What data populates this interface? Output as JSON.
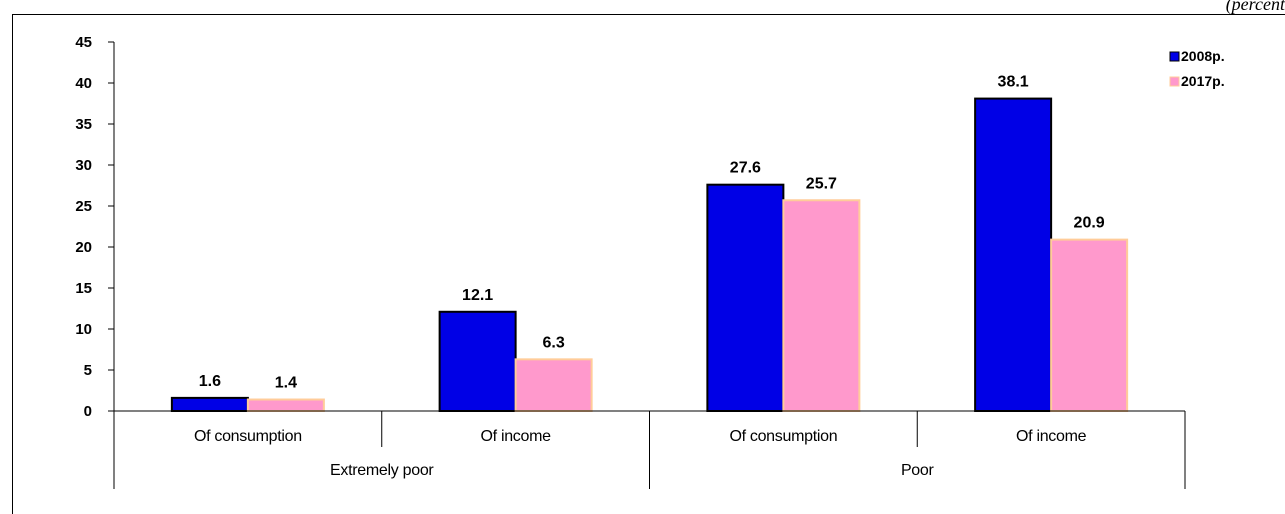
{
  "corner_note": "(percent",
  "chart_data": {
    "type": "bar",
    "categories": [
      "Of consumption",
      "Of income",
      "Of consumption",
      "Of income"
    ],
    "groups": [
      {
        "label": "Extremely poor",
        "span": [
          0,
          1
        ]
      },
      {
        "label": "Poor",
        "span": [
          2,
          3
        ]
      }
    ],
    "series": [
      {
        "name": "2008р.",
        "values": [
          1.6,
          12.1,
          27.6,
          38.1
        ],
        "color": "#0000e6",
        "stroke": "#000000"
      },
      {
        "name": "2017р.",
        "values": [
          1.4,
          6.3,
          25.7,
          20.9
        ],
        "color": "#ff99cc",
        "stroke": "#ffcc99"
      }
    ],
    "ylim": [
      0,
      45
    ],
    "ytick_step": 5,
    "yticks": [
      "0",
      "5",
      "10",
      "15",
      "20",
      "25",
      "30",
      "35",
      "40",
      "45"
    ],
    "data_labels": true,
    "grid": false,
    "legend_position": "top-right"
  }
}
